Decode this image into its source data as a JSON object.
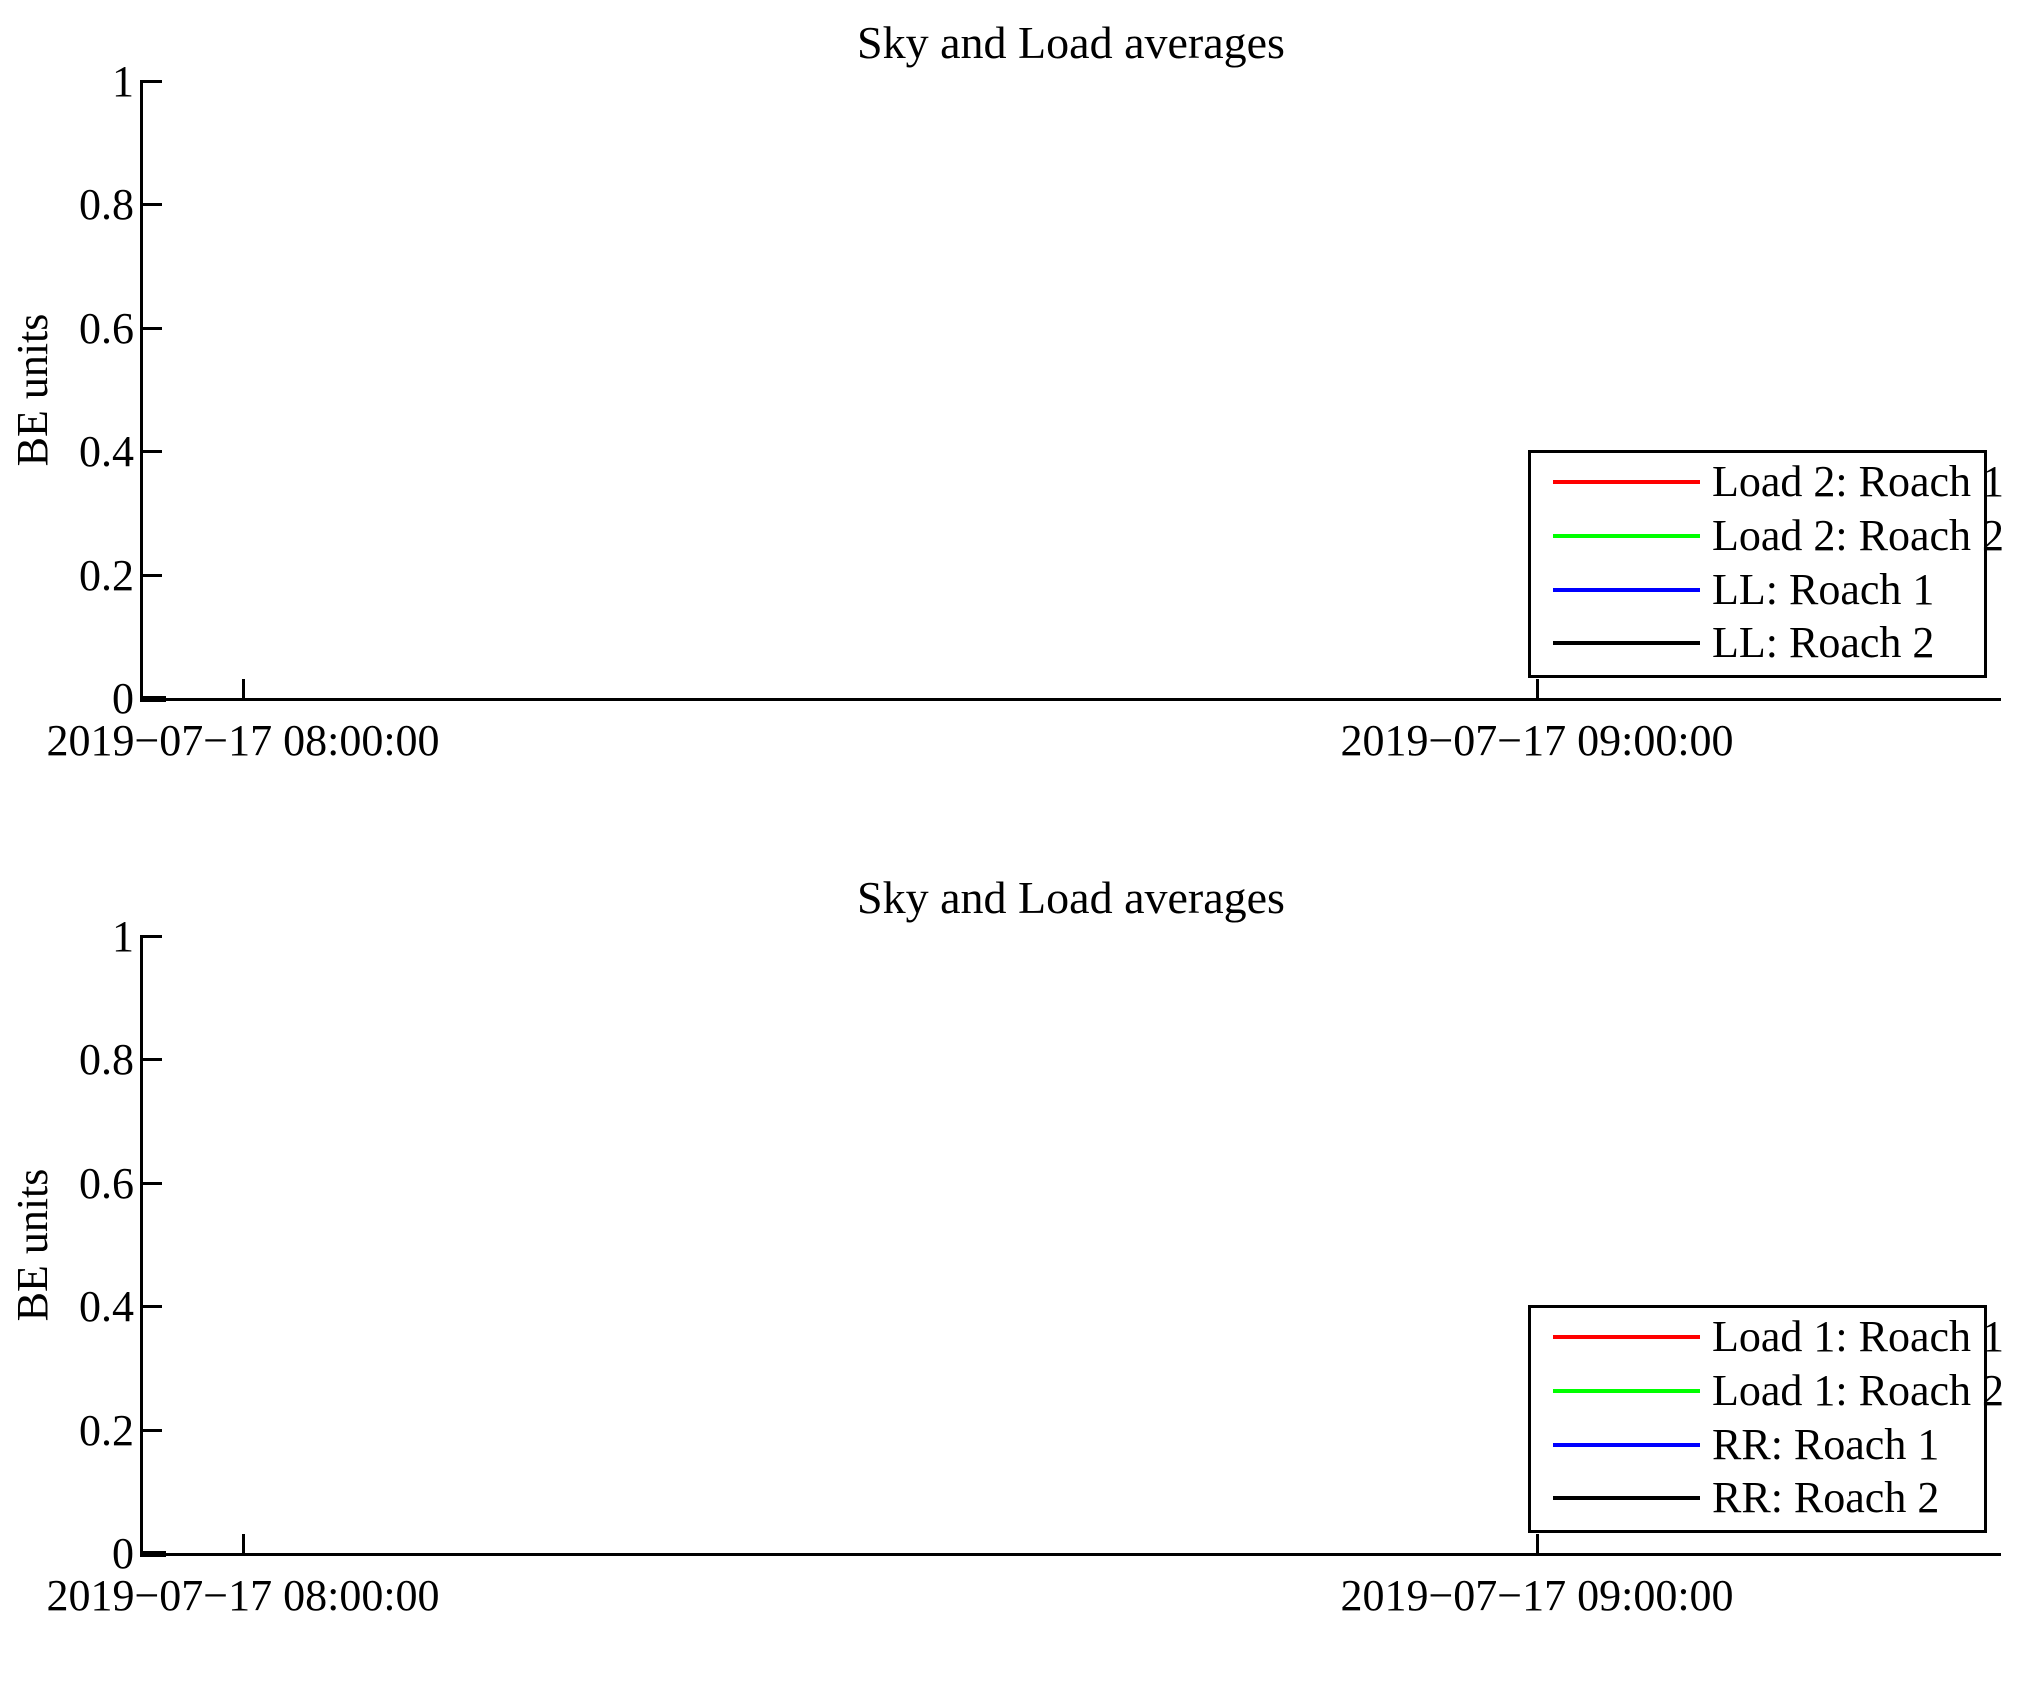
{
  "figure": {
    "background": "#ffffff",
    "num_charts": 2
  },
  "chart_data": [
    {
      "type": "line",
      "title": "Sky and Load averages",
      "xlabel": "",
      "ylabel": "BE units",
      "ylim": [
        0,
        1
      ],
      "yticks": [
        0,
        0.2,
        0.4,
        0.6,
        0.8,
        1
      ],
      "ytick_labels": [
        "0",
        "0.2",
        "0.4",
        "0.6",
        "0.8",
        "1"
      ],
      "xtick_labels": [
        "2019−07−17 08:00:00",
        "2019−07−17 09:00:00"
      ],
      "grid": false,
      "legend_position": "inside lower right",
      "series": [
        {
          "name": "Load 2: Roach 1",
          "color": "#ff0000",
          "values": [
            0,
            0
          ]
        },
        {
          "name": "Load 2: Roach 2",
          "color": "#00ff00",
          "values": [
            0,
            0
          ]
        },
        {
          "name": "LL: Roach 1",
          "color": "#0000ff",
          "values": [
            0,
            0
          ]
        },
        {
          "name": "LL: Roach 2",
          "color": "#000000",
          "values": [
            0,
            0
          ]
        }
      ],
      "series_note": "All four series sit at 0 and overlap over a very short interval at the far left edge of the time axis (just before the 08:00:00 tick); the black series is drawn on top."
    },
    {
      "type": "line",
      "title": "Sky and Load averages",
      "xlabel": "",
      "ylabel": "BE units",
      "ylim": [
        0,
        1
      ],
      "yticks": [
        0,
        0.2,
        0.4,
        0.6,
        0.8,
        1
      ],
      "ytick_labels": [
        "0",
        "0.2",
        "0.4",
        "0.6",
        "0.8",
        "1"
      ],
      "xtick_labels": [
        "2019−07−17 08:00:00",
        "2019−07−17 09:00:00"
      ],
      "grid": false,
      "legend_position": "inside lower right",
      "series": [
        {
          "name": "Load 1: Roach 1",
          "color": "#ff0000",
          "values": [
            0,
            0
          ]
        },
        {
          "name": "Load 1: Roach 2",
          "color": "#00ff00",
          "values": [
            0,
            0
          ]
        },
        {
          "name": "RR: Roach 1",
          "color": "#0000ff",
          "values": [
            0,
            0
          ]
        },
        {
          "name": "RR: Roach 2",
          "color": "#000000",
          "values": [
            0,
            0
          ]
        }
      ],
      "series_note": "All four series sit at 0 and overlap over a very short interval at the far left edge of the time axis (just before the 08:00:00 tick); the black series is drawn on top."
    }
  ]
}
